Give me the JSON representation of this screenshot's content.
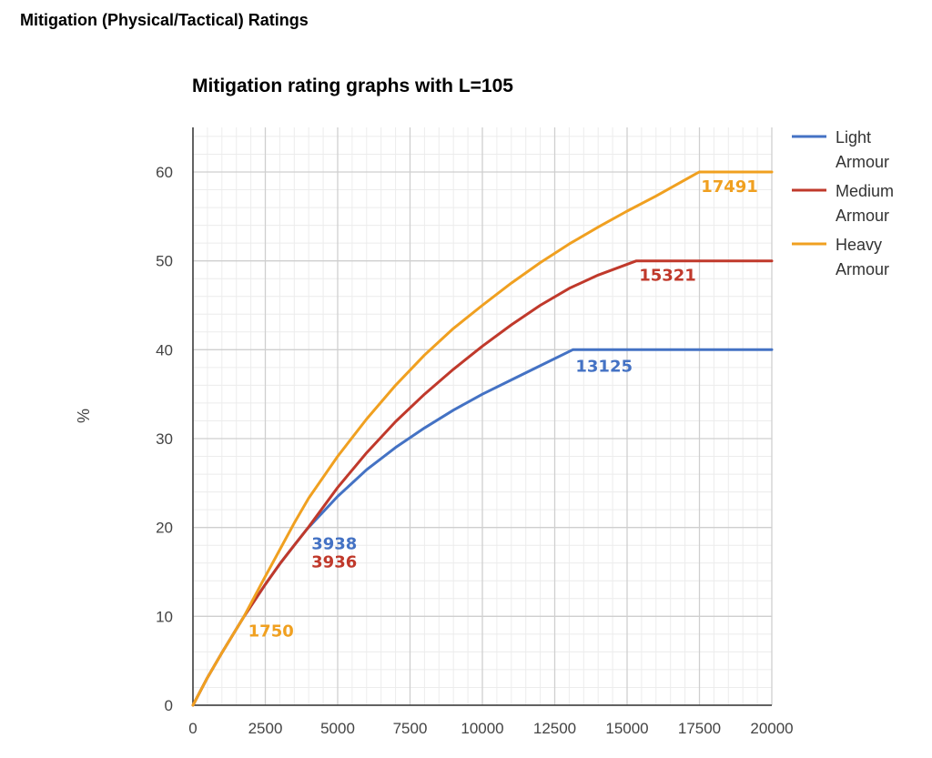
{
  "page": {
    "heading": "Mitigation (Physical/Tactical) Ratings"
  },
  "chart_data": {
    "type": "line",
    "title": "Mitigation rating graphs with L=105",
    "xlabel": "",
    "ylabel": "%",
    "xlim": [
      0,
      20000
    ],
    "ylim": [
      0,
      65
    ],
    "x_ticks": [
      0,
      2500,
      5000,
      7500,
      10000,
      12500,
      15000,
      17500,
      20000
    ],
    "y_ticks": [
      0,
      10,
      20,
      30,
      40,
      50,
      60
    ],
    "grid": true,
    "legend_position": "right",
    "series": [
      {
        "name": "Light Armour",
        "color": "#4472c4",
        "x": [
          0,
          500,
          1000,
          1750,
          2500,
          3000,
          3500,
          3938,
          5000,
          6000,
          7000,
          8000,
          9000,
          10000,
          11000,
          12000,
          13125,
          14000,
          16000,
          18000,
          20000
        ],
        "y": [
          0,
          3.1,
          5.9,
          9.9,
          13.6,
          15.9,
          18.0,
          19.8,
          23.5,
          26.5,
          29.0,
          31.2,
          33.2,
          35.0,
          36.6,
          38.2,
          40,
          40,
          40,
          40,
          40
        ]
      },
      {
        "name": "Medium Armour",
        "color": "#c0392b",
        "x": [
          0,
          500,
          1000,
          1750,
          2500,
          3000,
          3500,
          3936,
          5000,
          6000,
          7000,
          8000,
          9000,
          10000,
          11000,
          12000,
          13000,
          14000,
          15321,
          16000,
          18000,
          20000
        ],
        "y": [
          0,
          3.1,
          5.9,
          9.9,
          13.6,
          15.9,
          18.0,
          19.8,
          24.5,
          28.4,
          31.9,
          35.0,
          37.8,
          40.4,
          42.8,
          45.0,
          46.9,
          48.4,
          50,
          50,
          50,
          50
        ]
      },
      {
        "name": "Heavy Armour",
        "color": "#f0a020",
        "x": [
          0,
          500,
          1000,
          1750,
          2500,
          3000,
          3500,
          4000,
          5000,
          6000,
          7000,
          8000,
          9000,
          10000,
          11000,
          12000,
          13000,
          14000,
          15000,
          16000,
          17491,
          18000,
          20000
        ],
        "y": [
          0,
          3.1,
          5.9,
          9.9,
          14.5,
          17.5,
          20.5,
          23.3,
          28.0,
          32.2,
          36.0,
          39.4,
          42.4,
          45.0,
          47.5,
          49.8,
          51.9,
          53.8,
          55.6,
          57.3,
          60,
          60,
          60
        ]
      }
    ],
    "annotations": [
      {
        "text": "1750",
        "x": 1750,
        "y": 9.9,
        "color": "#f0a020"
      },
      {
        "text": "3938",
        "x": 3938,
        "y": 19.8,
        "color": "#4472c4"
      },
      {
        "text": "3936",
        "x": 3936,
        "y": 19.8,
        "color": "#c0392b"
      },
      {
        "text": "13125",
        "x": 13125,
        "y": 40,
        "color": "#4472c4"
      },
      {
        "text": "15321",
        "x": 15321,
        "y": 50,
        "color": "#c0392b"
      },
      {
        "text": "17491",
        "x": 17491,
        "y": 60,
        "color": "#f0a020"
      }
    ],
    "legend": [
      {
        "line1": "Light",
        "line2": "Armour"
      },
      {
        "line1": "Medium",
        "line2": "Armour"
      },
      {
        "line1": "Heavy",
        "line2": "Armour"
      }
    ]
  }
}
